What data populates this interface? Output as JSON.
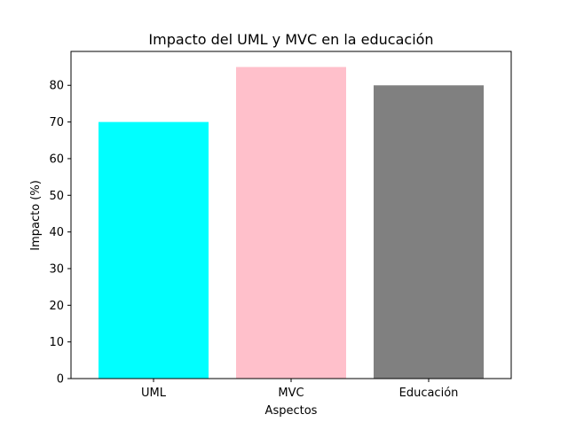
{
  "chart_data": {
    "type": "bar",
    "title": "Impacto del UML y MVC en la educación",
    "xlabel": "Aspectos",
    "ylabel": "Impacto (%)",
    "categories": [
      "UML",
      "MVC",
      "Educación"
    ],
    "values": [
      70,
      85,
      80
    ],
    "colors": [
      "#00ffff",
      "#ffc0cb",
      "#808080"
    ],
    "ylim": [
      0,
      89.25
    ],
    "yticks": [
      0,
      10,
      20,
      30,
      40,
      50,
      60,
      70,
      80
    ],
    "grid": false
  }
}
